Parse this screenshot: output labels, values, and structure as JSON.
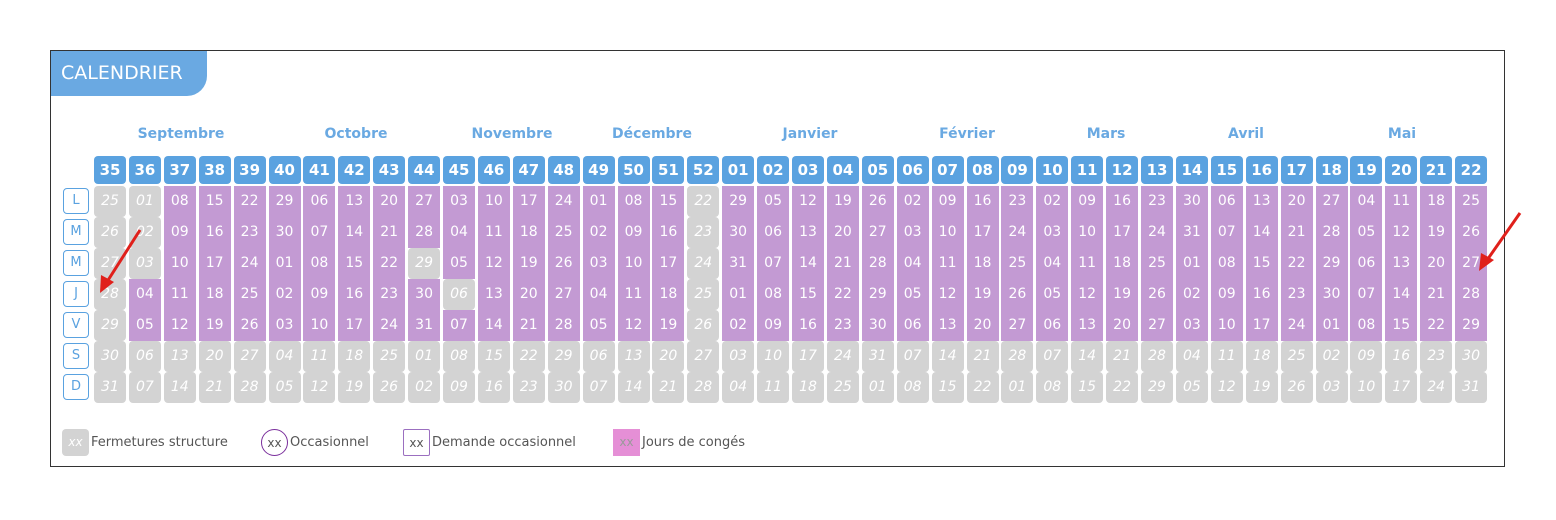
{
  "title": "CALENDRIER",
  "months": [
    "Septembre",
    "Octobre",
    "Novembre",
    "Décembre",
    "Janvier",
    "Février",
    "Mars",
    "Avril",
    "Mai"
  ],
  "weeks": [
    "35",
    "36",
    "37",
    "38",
    "39",
    "40",
    "41",
    "42",
    "43",
    "44",
    "45",
    "46",
    "47",
    "48",
    "49",
    "50",
    "51",
    "52",
    "01",
    "02",
    "03",
    "04",
    "05",
    "06",
    "07",
    "08",
    "09",
    "10",
    "11",
    "12",
    "13",
    "14",
    "15",
    "16",
    "17",
    "18",
    "19",
    "20",
    "21",
    "22"
  ],
  "day_names": [
    "L",
    "M",
    "M",
    "J",
    "V",
    "S",
    "D"
  ],
  "first_date": "2025-08-25",
  "purple_range": [
    "2025-09-04",
    "2026-05-31"
  ],
  "grey_weekdays": [
    "2025-10-29",
    "2025-11-06",
    "2025-12-22",
    "2025-12-23",
    "2025-12-24",
    "2025-12-25",
    "2025-12-26"
  ],
  "legend": [
    {
      "sample": "xx",
      "label": "Fermetures structure",
      "style": "grey"
    },
    {
      "sample": "xx",
      "label": "Occasionnel",
      "style": "circle"
    },
    {
      "sample": "xx",
      "label": "Demande occasionnel",
      "style": "square"
    },
    {
      "sample": "xx",
      "label": "Jours de congés",
      "style": "pink"
    }
  ],
  "colors": {
    "accent": "#5aa2e0",
    "day_purple": "#c39ad3",
    "closed_grey": "#d3d3d3",
    "pink": "#e58fd6",
    "arrow_red": "#e0201b"
  }
}
